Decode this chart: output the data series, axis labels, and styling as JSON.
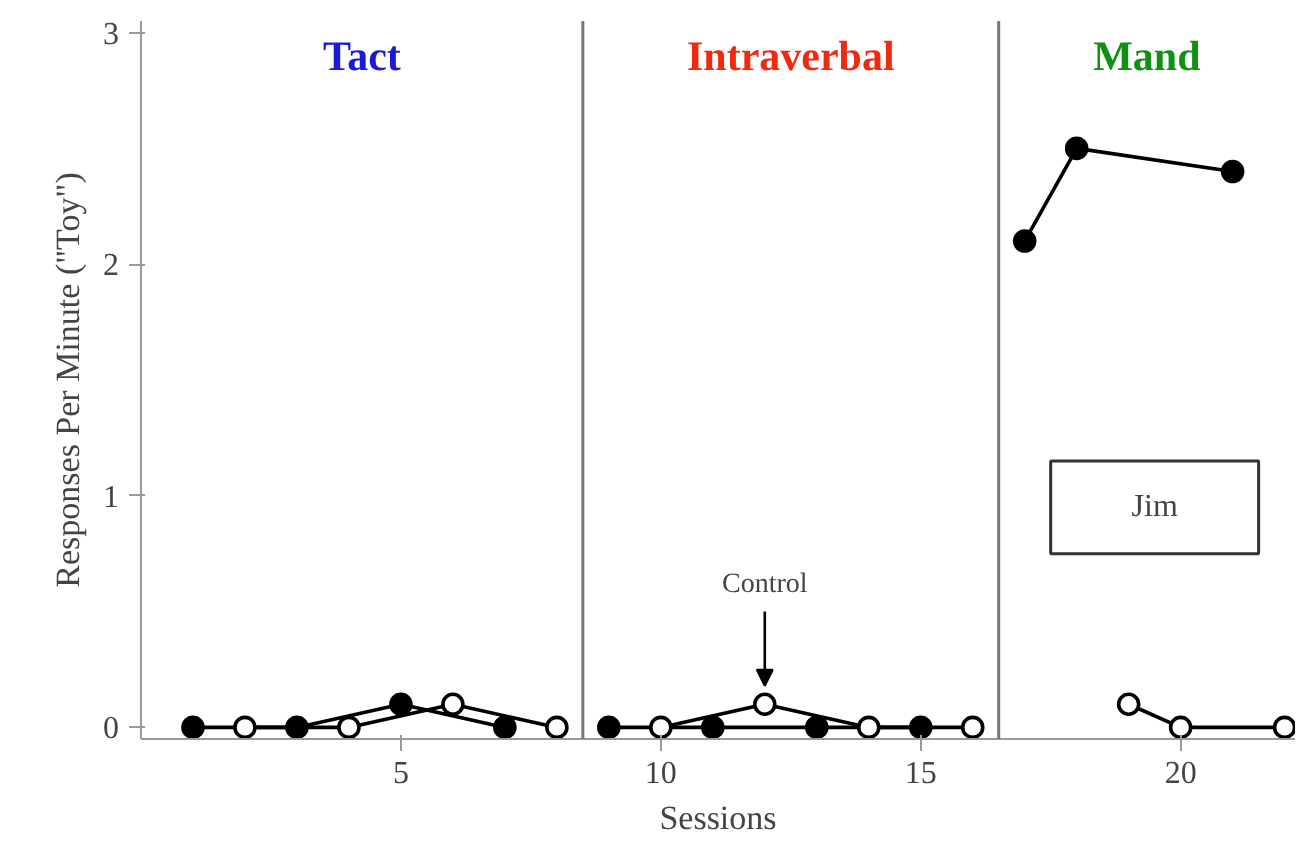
{
  "chart_data": {
    "type": "line",
    "xlabel": "Sessions",
    "ylabel": "Responses Per Minute (\"Toy\")",
    "xlim": [
      0,
      22.2
    ],
    "ylim": [
      -0.05,
      3.05
    ],
    "xticks": [
      5,
      10,
      15,
      20
    ],
    "yticks": [
      0,
      1,
      2,
      3
    ],
    "grid": false,
    "marker": "circle",
    "line_style": "solid",
    "series": [
      {
        "color": "#000000",
        "x": [
          1,
          3,
          5,
          7,
          8,
          9,
          11,
          13,
          15,
          16,
          17,
          18,
          21
        ],
        "values": [
          0,
          0,
          0.1,
          0,
          null,
          0,
          0,
          0,
          0,
          null,
          2.1,
          2.5,
          2.4
        ]
      },
      {
        "color": "#000000",
        "x": [
          2,
          4,
          6,
          8,
          9,
          10,
          12,
          14,
          16,
          17,
          19,
          20,
          22
        ],
        "values": [
          0,
          0,
          0.1,
          0,
          null,
          0,
          0.1,
          0,
          0,
          null,
          0.1,
          0,
          0
        ]
      }
    ],
    "ref_lines": [
      {
        "axis": "x",
        "value": 8.5,
        "color": "#777777"
      },
      {
        "axis": "x",
        "value": 16.5,
        "color": "#777777"
      }
    ],
    "annotations": [
      "Tact",
      "Intraverbal",
      "Mand",
      {
        "text": "Control",
        "x": 12,
        "y": 0.1
      },
      "Jim"
    ]
  }
}
